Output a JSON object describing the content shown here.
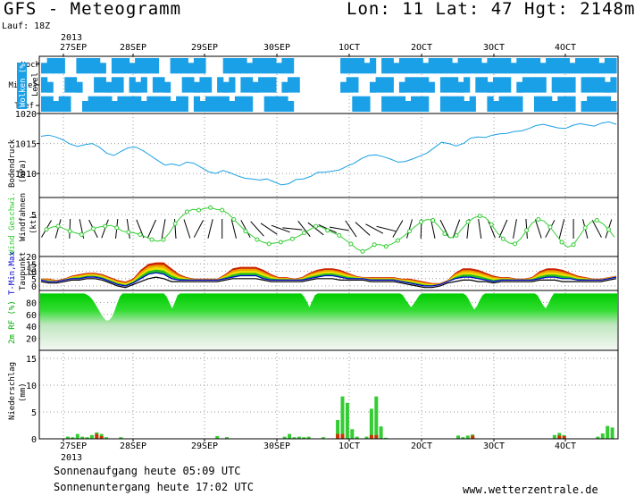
{
  "header": {
    "title": "GFS - Meteogramm",
    "coords": "Lon: 11 Lat: 47 Hgt: 2148m",
    "run": "Lauf: 18Z",
    "year": "2013"
  },
  "footer": {
    "year": "2013",
    "sunrise": "Sonnenaufgang heute 05:09 UTC",
    "sunset": "Sonnenuntergang heute 17:02 UTC",
    "site": "www.wetterzentrale.de"
  },
  "colors": {
    "cloud": "#1aa0e6",
    "pressure": "#1aa0e6",
    "wind": "#33cc33",
    "precip": "#33cc33",
    "precip_snow": "#cc3300",
    "rh": "#00cc00",
    "tmax": "#cc0000",
    "tmin": "#0000cc",
    "dew": "#000000"
  },
  "chart_data": [
    {
      "type": "heatmap",
      "name": "clouds",
      "ylabel": "Wolken (%)",
      "levels_label": "Level",
      "rows": [
        "Hoch",
        "Mittel",
        "Tief"
      ],
      "x_days": [
        "27SEP",
        "28SEP",
        "29SEP",
        "30SEP",
        "1OCT",
        "2OCT",
        "3OCT",
        "4OCT"
      ],
      "x_tick_labels": [
        "27SEP",
        "28SEP",
        "29SEP",
        "30SEP",
        "1OCT",
        "2OCT",
        "3OCT",
        "4OCT"
      ],
      "steps": 98,
      "cover_hoch": [
        1,
        1,
        1,
        1,
        0,
        0,
        1,
        1,
        1,
        1,
        1,
        0,
        1,
        1,
        1,
        1,
        1,
        1,
        1,
        1,
        0,
        0,
        1,
        1,
        1,
        1,
        1,
        1,
        0,
        0,
        0,
        1,
        1,
        1,
        1,
        1,
        1,
        1,
        1,
        1,
        1,
        1,
        1,
        0,
        0,
        0,
        0,
        0,
        0,
        0,
        0,
        1,
        1,
        1,
        1,
        1,
        1,
        0,
        1,
        1,
        1,
        1,
        1,
        1,
        1,
        1,
        1,
        1,
        1,
        1,
        1,
        1,
        1,
        1,
        1,
        1,
        1,
        1,
        1,
        1,
        1,
        1,
        1,
        1,
        1,
        1,
        1,
        1,
        1,
        1,
        1,
        1,
        1,
        1,
        1,
        1,
        1,
        1
      ],
      "cover_mittel": [
        1,
        1,
        0,
        0,
        1,
        1,
        1,
        0,
        0,
        1,
        1,
        1,
        1,
        1,
        0,
        1,
        1,
        1,
        0,
        1,
        1,
        1,
        0,
        0,
        1,
        1,
        1,
        1,
        1,
        0,
        1,
        1,
        1,
        0,
        1,
        1,
        1,
        1,
        1,
        1,
        0,
        1,
        1,
        1,
        0,
        0,
        0,
        0,
        0,
        0,
        0,
        1,
        1,
        1,
        0,
        0,
        1,
        1,
        1,
        1,
        0,
        1,
        1,
        1,
        1,
        1,
        1,
        0,
        1,
        1,
        1,
        1,
        1,
        0,
        1,
        1,
        1,
        1,
        1,
        1,
        0,
        1,
        1,
        1,
        1,
        1,
        0,
        1,
        1,
        1,
        1,
        0,
        1,
        1,
        1,
        1,
        1,
        1
      ],
      "cover_tief": [
        1,
        1,
        1,
        1,
        1,
        0,
        0,
        1,
        1,
        1,
        1,
        1,
        1,
        1,
        1,
        1,
        1,
        1,
        1,
        1,
        1,
        1,
        1,
        1,
        1,
        0,
        1,
        1,
        1,
        1,
        1,
        1,
        1,
        1,
        1,
        1,
        0,
        0,
        1,
        1,
        1,
        1,
        1,
        0,
        0,
        0,
        0,
        0,
        0,
        0,
        0,
        0,
        0,
        1,
        1,
        1,
        0,
        0,
        1,
        1,
        1,
        1,
        1,
        1,
        1,
        1,
        0,
        0,
        1,
        1,
        1,
        1,
        1,
        1,
        0,
        0,
        1,
        1,
        1,
        1,
        1,
        1,
        0,
        0,
        1,
        1,
        1,
        1,
        1,
        1,
        1,
        0,
        1,
        1,
        1,
        1,
        1,
        1
      ]
    },
    {
      "type": "line",
      "name": "pressure",
      "ylabel": "Bodendruck",
      "unit": "(hPa)",
      "yticks": [
        1010,
        1015,
        1020
      ],
      "ylim": [
        1006,
        1020
      ],
      "values": [
        1016.2,
        1016.4,
        1016.1,
        1015.6,
        1014.9,
        1014.5,
        1014.8,
        1015.0,
        1014.4,
        1013.4,
        1013.0,
        1013.7,
        1014.3,
        1014.4,
        1013.8,
        1013.0,
        1012.2,
        1011.4,
        1011.6,
        1011.3,
        1011.9,
        1011.7,
        1011.0,
        1010.3,
        1010.0,
        1010.5,
        1010.1,
        1009.6,
        1009.2,
        1009.1,
        1008.9,
        1009.1,
        1008.6,
        1008.1,
        1008.3,
        1009.0,
        1009.1,
        1009.5,
        1010.2,
        1010.2,
        1010.4,
        1010.6,
        1011.2,
        1011.7,
        1012.5,
        1013.0,
        1013.1,
        1012.8,
        1012.4,
        1011.9,
        1012.0,
        1012.4,
        1012.9,
        1013.4,
        1014.3,
        1015.2,
        1015.0,
        1014.6,
        1015.0,
        1015.9,
        1016.1,
        1016.0,
        1016.4,
        1016.6,
        1016.7,
        1017.0,
        1017.1,
        1017.5,
        1018.0,
        1018.2,
        1017.9,
        1017.6,
        1017.5,
        1018.0,
        1018.3,
        1018.1,
        1017.9,
        1018.4,
        1018.6,
        1018.2
      ]
    },
    {
      "type": "line",
      "name": "wind",
      "ylabel": "Wind Geschwi.",
      "ylabel2": "Windfahnen",
      "unit": "(kt)",
      "yticks": [
        5
      ],
      "ylim": [
        0,
        7
      ],
      "values": [
        3.2,
        3.5,
        3.6,
        3.3,
        3.0,
        2.8,
        2.6,
        3.0,
        3.3,
        3.5,
        3.6,
        3.7,
        3.4,
        3.0,
        2.9,
        2.8,
        2.6,
        2.3,
        2.0,
        1.8,
        2.0,
        2.8,
        3.9,
        4.7,
        5.3,
        5.6,
        5.5,
        5.7,
        5.8,
        5.6,
        5.5,
        5.1,
        4.4,
        3.7,
        3.0,
        2.5,
        2.0,
        1.7,
        1.5,
        1.6,
        1.7,
        1.9,
        2.1,
        2.4,
        2.8,
        3.2,
        3.6,
        3.5,
        3.1,
        2.8,
        2.5,
        2.0,
        1.5,
        0.9,
        0.6,
        0.9,
        1.4,
        1.4,
        1.2,
        1.5,
        1.9,
        2.4,
        3.0,
        3.6,
        4.1,
        4.4,
        4.3,
        3.6,
        2.7,
        2.2,
        2.5,
        3.3,
        4.1,
        4.6,
        4.8,
        4.6,
        3.8,
        2.8,
        2.1,
        1.6,
        1.5,
        2.1,
        3.1,
        4.0,
        4.4,
        4.2,
        3.5,
        2.6,
        1.7,
        1.1,
        1.4,
        2.4,
        3.4,
        4.1,
        4.3,
        3.9,
        3.2,
        2.3
      ]
    },
    {
      "type": "area",
      "name": "temperature",
      "ylabel": "T-Min,Max",
      "ylabel2": "Taupunkt",
      "unit": "(C)",
      "yticks": [
        0,
        5,
        10,
        15,
        20
      ],
      "ylim": [
        -3,
        20
      ],
      "tmax": [
        5,
        5,
        4,
        5,
        7,
        8,
        9,
        9,
        8,
        6,
        4,
        3,
        5,
        11,
        15,
        16,
        16,
        12,
        8,
        6,
        5,
        5,
        5,
        5,
        8,
        12,
        13,
        13,
        13,
        11,
        8,
        6,
        6,
        5,
        6,
        9,
        11,
        12,
        12,
        11,
        9,
        7,
        6,
        6,
        6,
        6,
        6,
        5,
        5,
        4,
        3,
        2,
        2,
        4,
        9,
        12,
        12,
        11,
        9,
        7,
        6,
        6,
        5,
        5,
        6,
        10,
        12,
        12,
        11,
        9,
        7,
        6,
        5,
        5,
        6,
        7
      ],
      "tmin": [
        4,
        3,
        3,
        4,
        5,
        5,
        6,
        6,
        5,
        3,
        1,
        0,
        2,
        5,
        8,
        9,
        8,
        5,
        4,
        4,
        4,
        4,
        4,
        4,
        5,
        6,
        7,
        7,
        7,
        5,
        4,
        4,
        4,
        4,
        4,
        5,
        6,
        7,
        7,
        6,
        5,
        5,
        5,
        4,
        4,
        4,
        4,
        3,
        2,
        1,
        0,
        0,
        1,
        3,
        5,
        6,
        6,
        5,
        4,
        3,
        4,
        4,
        4,
        4,
        4,
        5,
        6,
        6,
        5,
        5,
        4,
        4,
        4,
        4,
        5,
        6
      ],
      "dew": [
        3,
        2,
        2,
        3,
        4,
        4,
        5,
        5,
        4,
        2,
        0,
        -1,
        1,
        3,
        5,
        6,
        5,
        3,
        3,
        3,
        3,
        3,
        3,
        3,
        4,
        5,
        5,
        5,
        5,
        4,
        3,
        3,
        3,
        3,
        3,
        4,
        5,
        5,
        5,
        4,
        4,
        4,
        4,
        3,
        3,
        3,
        3,
        2,
        1,
        0,
        -1,
        -1,
        0,
        2,
        3,
        4,
        4,
        3,
        3,
        2,
        3,
        3,
        3,
        3,
        3,
        4,
        4,
        4,
        3,
        3,
        3,
        3,
        3,
        3,
        4,
        5
      ]
    },
    {
      "type": "area",
      "name": "humidity",
      "ylabel": "2m RF (%)",
      "yticks": [
        20,
        40,
        60,
        80
      ],
      "ylim": [
        0,
        100
      ],
      "values": [
        95,
        95,
        95,
        95,
        95,
        95,
        95,
        95,
        95,
        95,
        95,
        95,
        95,
        95,
        95,
        95,
        95,
        93,
        90,
        85,
        78,
        70,
        62,
        55,
        50,
        50,
        55,
        65,
        78,
        90,
        95,
        95,
        95,
        95,
        95,
        95,
        95,
        95,
        95,
        95,
        95,
        95,
        95,
        95,
        95,
        95,
        90,
        80,
        70,
        80,
        92,
        95,
        95,
        95,
        95,
        95,
        95,
        95,
        95,
        95,
        95,
        95,
        95,
        95,
        95,
        95,
        95,
        95,
        95,
        95,
        95,
        95,
        95,
        95,
        95,
        95,
        95,
        95,
        95,
        95,
        95,
        95,
        95,
        95,
        95,
        95,
        95,
        95,
        95,
        95,
        95,
        95,
        95,
        95,
        95,
        95,
        90,
        82,
        72,
        82,
        92,
        95,
        95,
        95,
        95,
        95,
        95,
        95,
        95,
        95,
        95,
        95,
        95,
        95,
        95,
        95,
        95,
        95,
        95,
        95,
        95,
        95,
        95,
        95,
        95,
        95,
        95,
        95,
        95,
        95,
        95,
        95,
        92,
        85,
        78,
        72,
        78,
        85,
        92,
        95,
        95,
        95,
        95,
        95,
        95,
        95,
        95,
        95,
        95,
        95,
        95,
        95,
        95,
        95,
        95,
        92,
        85,
        76,
        68,
        74,
        84,
        92,
        95,
        95,
        95,
        95,
        95,
        95,
        95,
        95,
        95,
        95,
        95,
        95,
        95,
        95,
        95,
        95,
        95,
        95,
        95,
        92,
        84,
        76,
        70,
        78,
        88,
        95,
        95,
        95,
        95,
        95,
        95,
        95,
        95,
        95,
        95,
        95,
        95,
        95,
        95,
        95,
        95,
        95,
        95,
        95,
        95,
        95,
        95,
        95,
        95
      ]
    },
    {
      "type": "bar",
      "name": "precipitation",
      "ylabel": "Niederschlag",
      "unit": "(mm)",
      "yticks": [
        0,
        5,
        10,
        15
      ],
      "ylim": [
        0,
        16.5
      ],
      "rain": [
        0,
        0,
        0,
        0,
        0,
        0.4,
        0.3,
        0.9,
        0.4,
        0.3,
        0.7,
        1.2,
        0.9,
        0.3,
        0,
        0,
        0.3,
        0,
        0,
        0,
        0,
        0,
        0,
        0,
        0,
        0,
        0,
        0,
        0,
        0,
        0,
        0,
        0,
        0,
        0,
        0,
        0.5,
        0,
        0.3,
        0,
        0,
        0,
        0,
        0,
        0,
        0,
        0,
        0,
        0,
        0,
        0.4,
        0.9,
        0.3,
        0.4,
        0.3,
        0.4,
        0,
        0,
        0.3,
        0,
        0,
        3.5,
        7.9,
        6.7,
        1.8,
        0.4,
        0,
        0.4,
        5.6,
        7.9,
        2.3,
        0.2,
        0,
        0,
        0,
        0,
        0,
        0,
        0,
        0,
        0,
        0,
        0,
        0,
        0,
        0,
        0.6,
        0.3,
        0.6,
        0.8,
        0,
        0,
        0,
        0,
        0,
        0,
        0,
        0,
        0,
        0,
        0,
        0,
        0,
        0,
        0,
        0,
        0.7,
        1.1,
        0.7,
        0,
        0,
        0,
        0,
        0,
        0,
        0.4,
        1,
        2.4,
        2.1
      ],
      "snow": [
        0,
        0,
        0,
        0,
        0,
        0,
        0,
        0,
        0,
        0,
        0,
        0.9,
        0.5,
        0,
        0,
        0,
        0,
        0,
        0,
        0,
        0,
        0,
        0,
        0,
        0,
        0,
        0,
        0,
        0,
        0,
        0,
        0,
        0,
        0,
        0,
        0,
        0,
        0,
        0,
        0,
        0,
        0,
        0,
        0,
        0,
        0,
        0,
        0,
        0,
        0,
        0,
        0,
        0,
        0,
        0,
        0,
        0,
        0,
        0,
        0,
        0,
        0.9,
        0.9,
        0,
        0,
        0,
        0,
        0,
        0.7,
        0.7,
        0,
        0,
        0,
        0,
        0,
        0,
        0,
        0,
        0,
        0,
        0,
        0,
        0,
        0,
        0,
        0,
        0,
        0,
        0,
        0.6,
        0,
        0,
        0,
        0,
        0,
        0,
        0,
        0,
        0,
        0,
        0,
        0,
        0,
        0,
        0,
        0,
        0,
        0.6,
        0.5,
        0,
        0,
        0,
        0,
        0,
        0,
        0,
        0,
        0,
        0
      ]
    }
  ]
}
